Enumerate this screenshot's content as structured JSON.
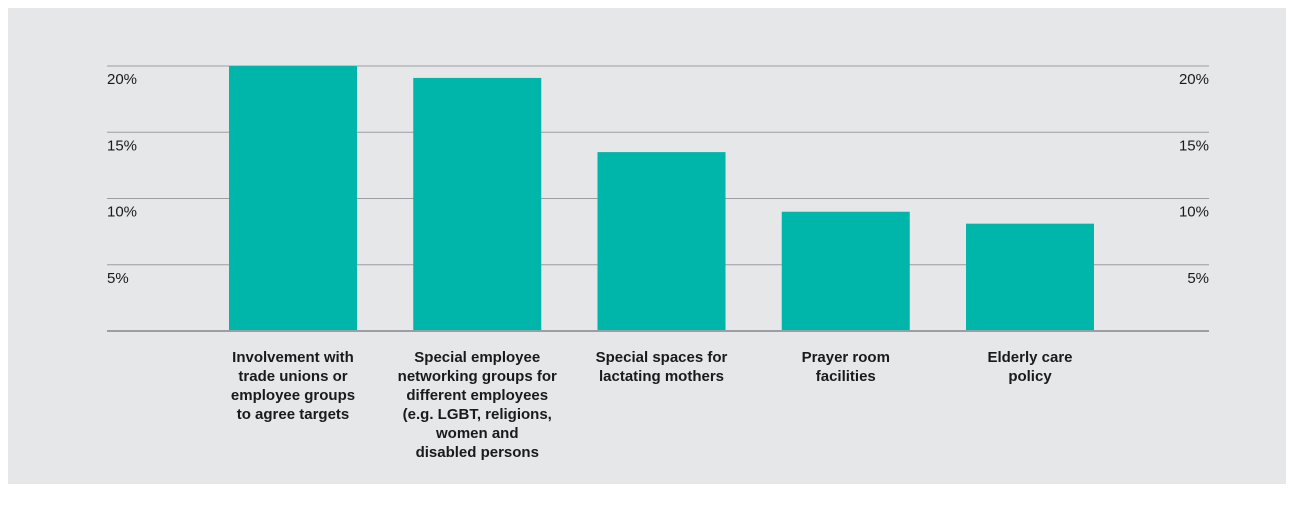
{
  "colors": {
    "background": "#e6e7e9",
    "bar": "#00b5a9",
    "grid": "#9b9ea3",
    "text": "#1a1a1a"
  },
  "chart_data": {
    "type": "bar",
    "categories": [
      "Involvement with trade unions or employee groups to agree targets",
      "Special employee networking groups for different employees (e.g. LGBT, religions, women and disabled persons",
      "Special spaces for lactating mothers",
      "Prayer room facilities",
      "Elderly care policy"
    ],
    "category_display": [
      "Involvement with\ntrade unions or\nemployee groups\nto agree targets",
      "Special employee\nnetworking groups for\ndifferent employees\n(e.g. LGBT, religions,\nwomen and\ndisabled persons",
      "Special spaces for\nlactating mothers",
      "Prayer room\nfacilities",
      "Elderly care\npolicy"
    ],
    "values": [
      20.0,
      19.1,
      13.5,
      9.0,
      8.1
    ],
    "ylim": [
      0,
      20
    ],
    "yticks": [
      5,
      10,
      15,
      20
    ],
    "ytick_labels": [
      "5%",
      "10%",
      "15%",
      "20%"
    ],
    "grid": true,
    "axis_labels_both_sides": true,
    "title": "",
    "xlabel": "",
    "ylabel": ""
  }
}
